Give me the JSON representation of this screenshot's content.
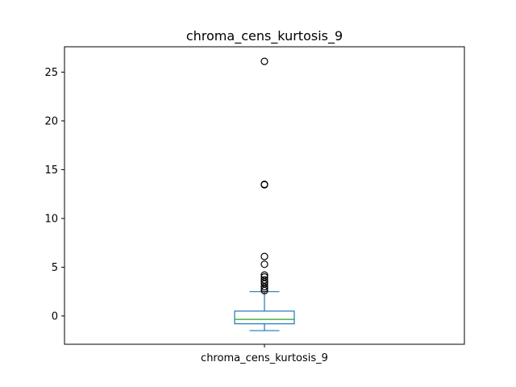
{
  "chart_data": {
    "type": "box",
    "title": "chroma_cens_kurtosis_9",
    "categories": [
      "chroma_cens_kurtosis_9"
    ],
    "ylim": [
      -2.9,
      27.6
    ],
    "y_ticks": [
      0,
      5,
      10,
      15,
      20,
      25
    ],
    "grid": false,
    "box": {
      "whisker_low": -1.5,
      "q1": -0.8,
      "median": -0.35,
      "q3": 0.5,
      "whisker_high": 2.5
    },
    "outliers": [
      26.1,
      13.5,
      13.45,
      6.1,
      5.3,
      4.2,
      4.0,
      3.7,
      3.5,
      3.3,
      3.0,
      2.8,
      2.6
    ],
    "colors": {
      "box": "#1f77b4",
      "median": "#2ca02c",
      "outlier": "#000000"
    }
  }
}
